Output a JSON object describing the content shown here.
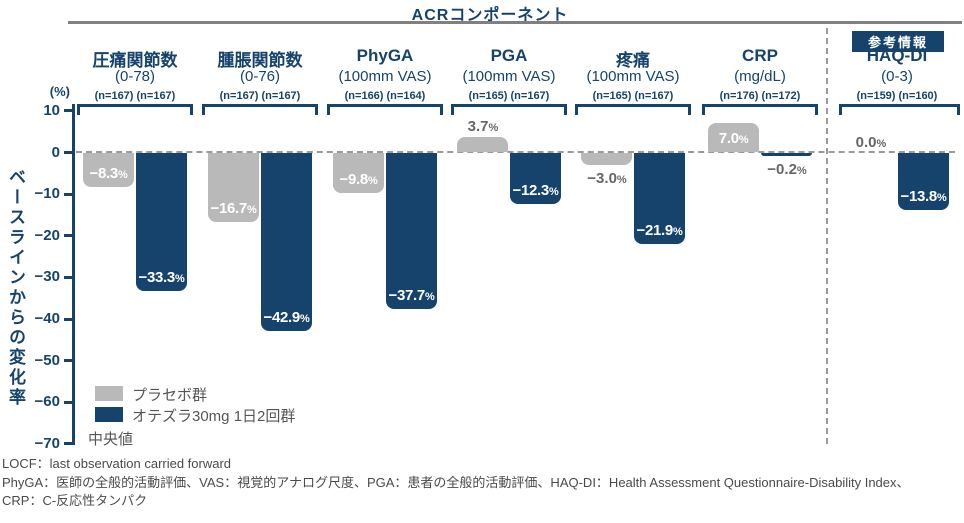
{
  "title": "ACRコンポーネント",
  "reference_badge": "参考情報",
  "percent_sign": "%",
  "y_axis": {
    "unit": "(%)",
    "label": "ベースラインからの変化率"
  },
  "legend": {
    "placebo": "プラセボ群",
    "treatment": "オテズラ30mg 1日2回群",
    "note": "中央値"
  },
  "footnotes": [
    "LOCF：last observation carried forward",
    "PhyGA：医師の全般的活動評価、VAS：視覚的アナログ尺度、PGA：患者の全般的活動評価、HAQ-DI：Health Assessment Questionnaire-Disability Index、",
    "CRP：C-反応性タンパク"
  ],
  "colors": {
    "navy": "#16436B",
    "gray_bar": "#B9B9B9",
    "outside_label": "#666666",
    "title_rule": "#808080",
    "dashed_line": "#9A9A9A",
    "footnote_text": "#4A4A4A"
  },
  "chart_data": {
    "type": "bar",
    "title": "ACRコンポーネント",
    "ylabel": "ベースラインからの変化率 (%)",
    "ylim": [
      -70,
      10
    ],
    "grid": false,
    "zero_line": "dashed",
    "legend_position": "bottom-left",
    "statistic": "中央値",
    "series": [
      "プラセボ群",
      "オテズラ30mg 1日2回群"
    ],
    "yticks": [
      {
        "v": 10,
        "label": "10"
      },
      {
        "v": 0,
        "label": "0"
      },
      {
        "v": -10,
        "label": "−10"
      },
      {
        "v": -20,
        "label": "−20"
      },
      {
        "v": -30,
        "label": "−30"
      },
      {
        "v": -40,
        "label": "−40"
      },
      {
        "v": -50,
        "label": "−50"
      },
      {
        "v": -60,
        "label": "−60"
      },
      {
        "v": -70,
        "label": "−70"
      }
    ],
    "categories": [
      {
        "name": "圧痛関節数",
        "scale": "(0-78)",
        "n_labels": "(n=167) (n=167)",
        "reference": false,
        "bars": [
          {
            "series": "プラセボ群",
            "value": -8.3,
            "label": "−8.3",
            "label_pos": "inside"
          },
          {
            "series": "オテズラ30mg 1日2回群",
            "value": -33.3,
            "label": "−33.3",
            "label_pos": "inside"
          }
        ]
      },
      {
        "name": "腫脹関節数",
        "scale": "(0-76)",
        "n_labels": "(n=167) (n=167)",
        "reference": false,
        "bars": [
          {
            "series": "プラセボ群",
            "value": -16.7,
            "label": "−16.7",
            "label_pos": "inside"
          },
          {
            "series": "オテズラ30mg 1日2回群",
            "value": -42.9,
            "label": "−42.9",
            "label_pos": "inside"
          }
        ]
      },
      {
        "name": "PhyGA",
        "scale": "(100mm VAS)",
        "n_labels": "(n=166) (n=164)",
        "reference": false,
        "bars": [
          {
            "series": "プラセボ群",
            "value": -9.8,
            "label": "−9.8",
            "label_pos": "inside"
          },
          {
            "series": "オテズラ30mg 1日2回群",
            "value": -37.7,
            "label": "−37.7",
            "label_pos": "inside"
          }
        ]
      },
      {
        "name": "PGA",
        "scale": "(100mm VAS)",
        "n_labels": "(n=165) (n=167)",
        "reference": false,
        "bars": [
          {
            "series": "プラセボ群",
            "value": 3.7,
            "label": "3.7",
            "label_pos": "above"
          },
          {
            "series": "オテズラ30mg 1日2回群",
            "value": -12.3,
            "label": "−12.3",
            "label_pos": "inside"
          }
        ]
      },
      {
        "name": "疼痛",
        "scale": "(100mm VAS)",
        "n_labels": "(n=165) (n=167)",
        "reference": false,
        "bars": [
          {
            "series": "プラセボ群",
            "value": -3.0,
            "label": "−3.0",
            "label_pos": "below"
          },
          {
            "series": "オテズラ30mg 1日2回群",
            "value": -21.9,
            "label": "−21.9",
            "label_pos": "inside"
          }
        ]
      },
      {
        "name": "CRP",
        "scale": "(mg/dL)",
        "n_labels": "(n=176) (n=172)",
        "reference": false,
        "bars": [
          {
            "series": "プラセボ群",
            "value": 7.0,
            "label": "7.0",
            "label_pos": "inside"
          },
          {
            "series": "オテズラ30mg 1日2回群",
            "value": -0.2,
            "label": "−0.2",
            "label_pos": "below"
          }
        ]
      },
      {
        "name": "HAQ-DI",
        "scale": "(0-3)",
        "n_labels": "(n=159) (n=160)",
        "reference": true,
        "bars": [
          {
            "series": "プラセボ群",
            "value": 0.0,
            "label": "0.0",
            "label_pos": "above"
          },
          {
            "series": "オテズラ30mg 1日2回群",
            "value": -13.8,
            "label": "−13.8",
            "label_pos": "inside"
          }
        ]
      }
    ]
  }
}
